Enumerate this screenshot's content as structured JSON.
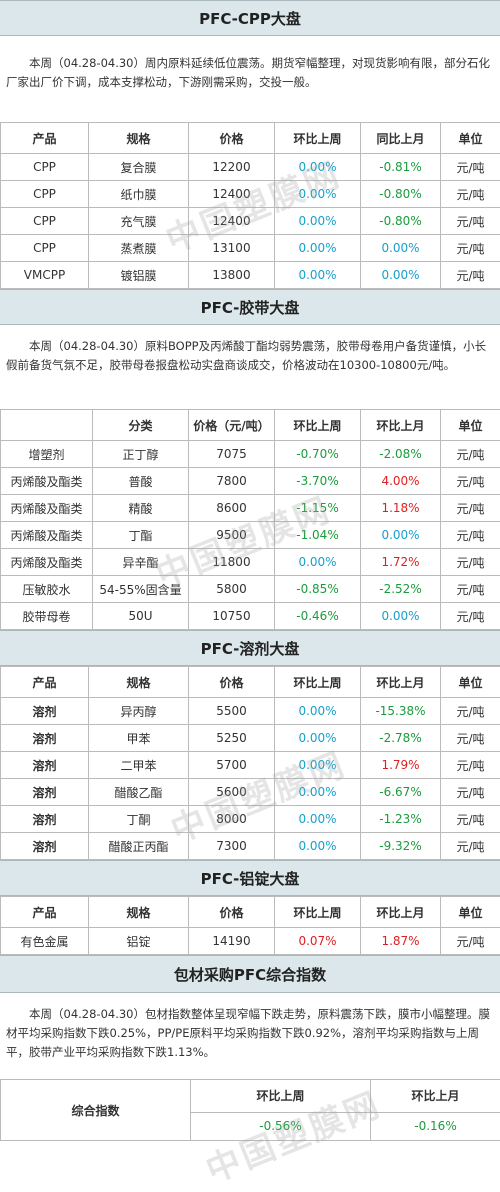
{
  "watermark": "中国塑膜网",
  "cpp": {
    "title": "PFC-CPP大盘",
    "intro": "本周（04.28-04.30）周内原料延续低位震荡。期货窄幅整理，对现货影响有限，部分石化厂家出厂价下调，成本支撑松动，下游刚需采购，交投一般。",
    "headers": [
      "产品",
      "规格",
      "价格",
      "环比上周",
      "同比上月",
      "单位"
    ],
    "rows": [
      [
        "CPP",
        "复合膜",
        "12200",
        "0.00%",
        "-0.81%",
        "元/吨"
      ],
      [
        "CPP",
        "纸巾膜",
        "12400",
        "0.00%",
        "-0.80%",
        "元/吨"
      ],
      [
        "CPP",
        "充气膜",
        "12400",
        "0.00%",
        "-0.80%",
        "元/吨"
      ],
      [
        "CPP",
        "蒸煮膜",
        "13100",
        "0.00%",
        "0.00%",
        "元/吨"
      ],
      [
        "VMCPP",
        "镀铝膜",
        "13800",
        "0.00%",
        "0.00%",
        "元/吨"
      ]
    ]
  },
  "tape": {
    "title": "PFC-胶带大盘",
    "intro": "本周（04.28-04.30）原料BOPP及丙烯酸丁酯均弱势震荡，胶带母卷用户备货谨慎，小长假前备货气氛不足，胶带母卷报盘松动实盘商谈成交，价格波动在10300-10800元/吨。",
    "headers": [
      "",
      "分类",
      "价格（元/吨）",
      "环比上周",
      "环比上月",
      "单位"
    ],
    "rows": [
      [
        "增塑剂",
        "正丁醇",
        "7075",
        "-0.70%",
        "-2.08%",
        "元/吨"
      ],
      [
        "丙烯酸及酯类",
        "普酸",
        "7800",
        "-3.70%",
        "4.00%",
        "元/吨"
      ],
      [
        "丙烯酸及酯类",
        "精酸",
        "8600",
        "-1.15%",
        "1.18%",
        "元/吨"
      ],
      [
        "丙烯酸及酯类",
        "丁酯",
        "9500",
        "-1.04%",
        "0.00%",
        "元/吨"
      ],
      [
        "丙烯酸及酯类",
        "异辛酯",
        "11800",
        "0.00%",
        "1.72%",
        "元/吨"
      ],
      [
        "压敏胶水",
        "54-55%固含量",
        "5800",
        "-0.85%",
        "-2.52%",
        "元/吨"
      ],
      [
        "胶带母卷",
        "50U",
        "10750",
        "-0.46%",
        "0.00%",
        "元/吨"
      ]
    ]
  },
  "solvent": {
    "title": "PFC-溶剂大盘",
    "headers": [
      "产品",
      "规格",
      "价格",
      "环比上周",
      "环比上月",
      "单位"
    ],
    "rows": [
      [
        "溶剂",
        "异丙醇",
        "5500",
        "0.00%",
        "-15.38%",
        "元/吨"
      ],
      [
        "溶剂",
        "甲苯",
        "5250",
        "0.00%",
        "-2.78%",
        "元/吨"
      ],
      [
        "溶剂",
        "二甲苯",
        "5700",
        "0.00%",
        "1.79%",
        "元/吨"
      ],
      [
        "溶剂",
        "醋酸乙酯",
        "5600",
        "0.00%",
        "-6.67%",
        "元/吨"
      ],
      [
        "溶剂",
        "丁酮",
        "8000",
        "0.00%",
        "-1.23%",
        "元/吨"
      ],
      [
        "溶剂",
        "醋酸正丙酯",
        "7300",
        "0.00%",
        "-9.32%",
        "元/吨"
      ]
    ]
  },
  "aluminum": {
    "title": "PFC-铝锭大盘",
    "headers": [
      "产品",
      "规格",
      "价格",
      "环比上周",
      "环比上月",
      "单位"
    ],
    "rows": [
      [
        "有色金属",
        "铝锭",
        "14190",
        "0.07%",
        "1.87%",
        "元/吨"
      ]
    ]
  },
  "index": {
    "title": "包材采购PFC综合指数",
    "intro": "本周（04.28-04.30）包材指数整体呈现窄幅下跌走势，原料震荡下跌，膜市小幅整理。膜材平均采购指数下跌0.25%，PP/PE原料平均采购指数下跌0.92%，溶剂平均采购指数与上周平，胶带产业平均采购指数下跌1.13%。",
    "label": "综合指数",
    "headers": [
      "环比上周",
      "环比上月"
    ],
    "values": [
      "-0.56%",
      "-0.16%"
    ]
  },
  "colors": {
    "up": "#e02020",
    "down": "#1a9c3c",
    "flat": "#18a0cc",
    "header_bg": "#dbe7ea"
  }
}
